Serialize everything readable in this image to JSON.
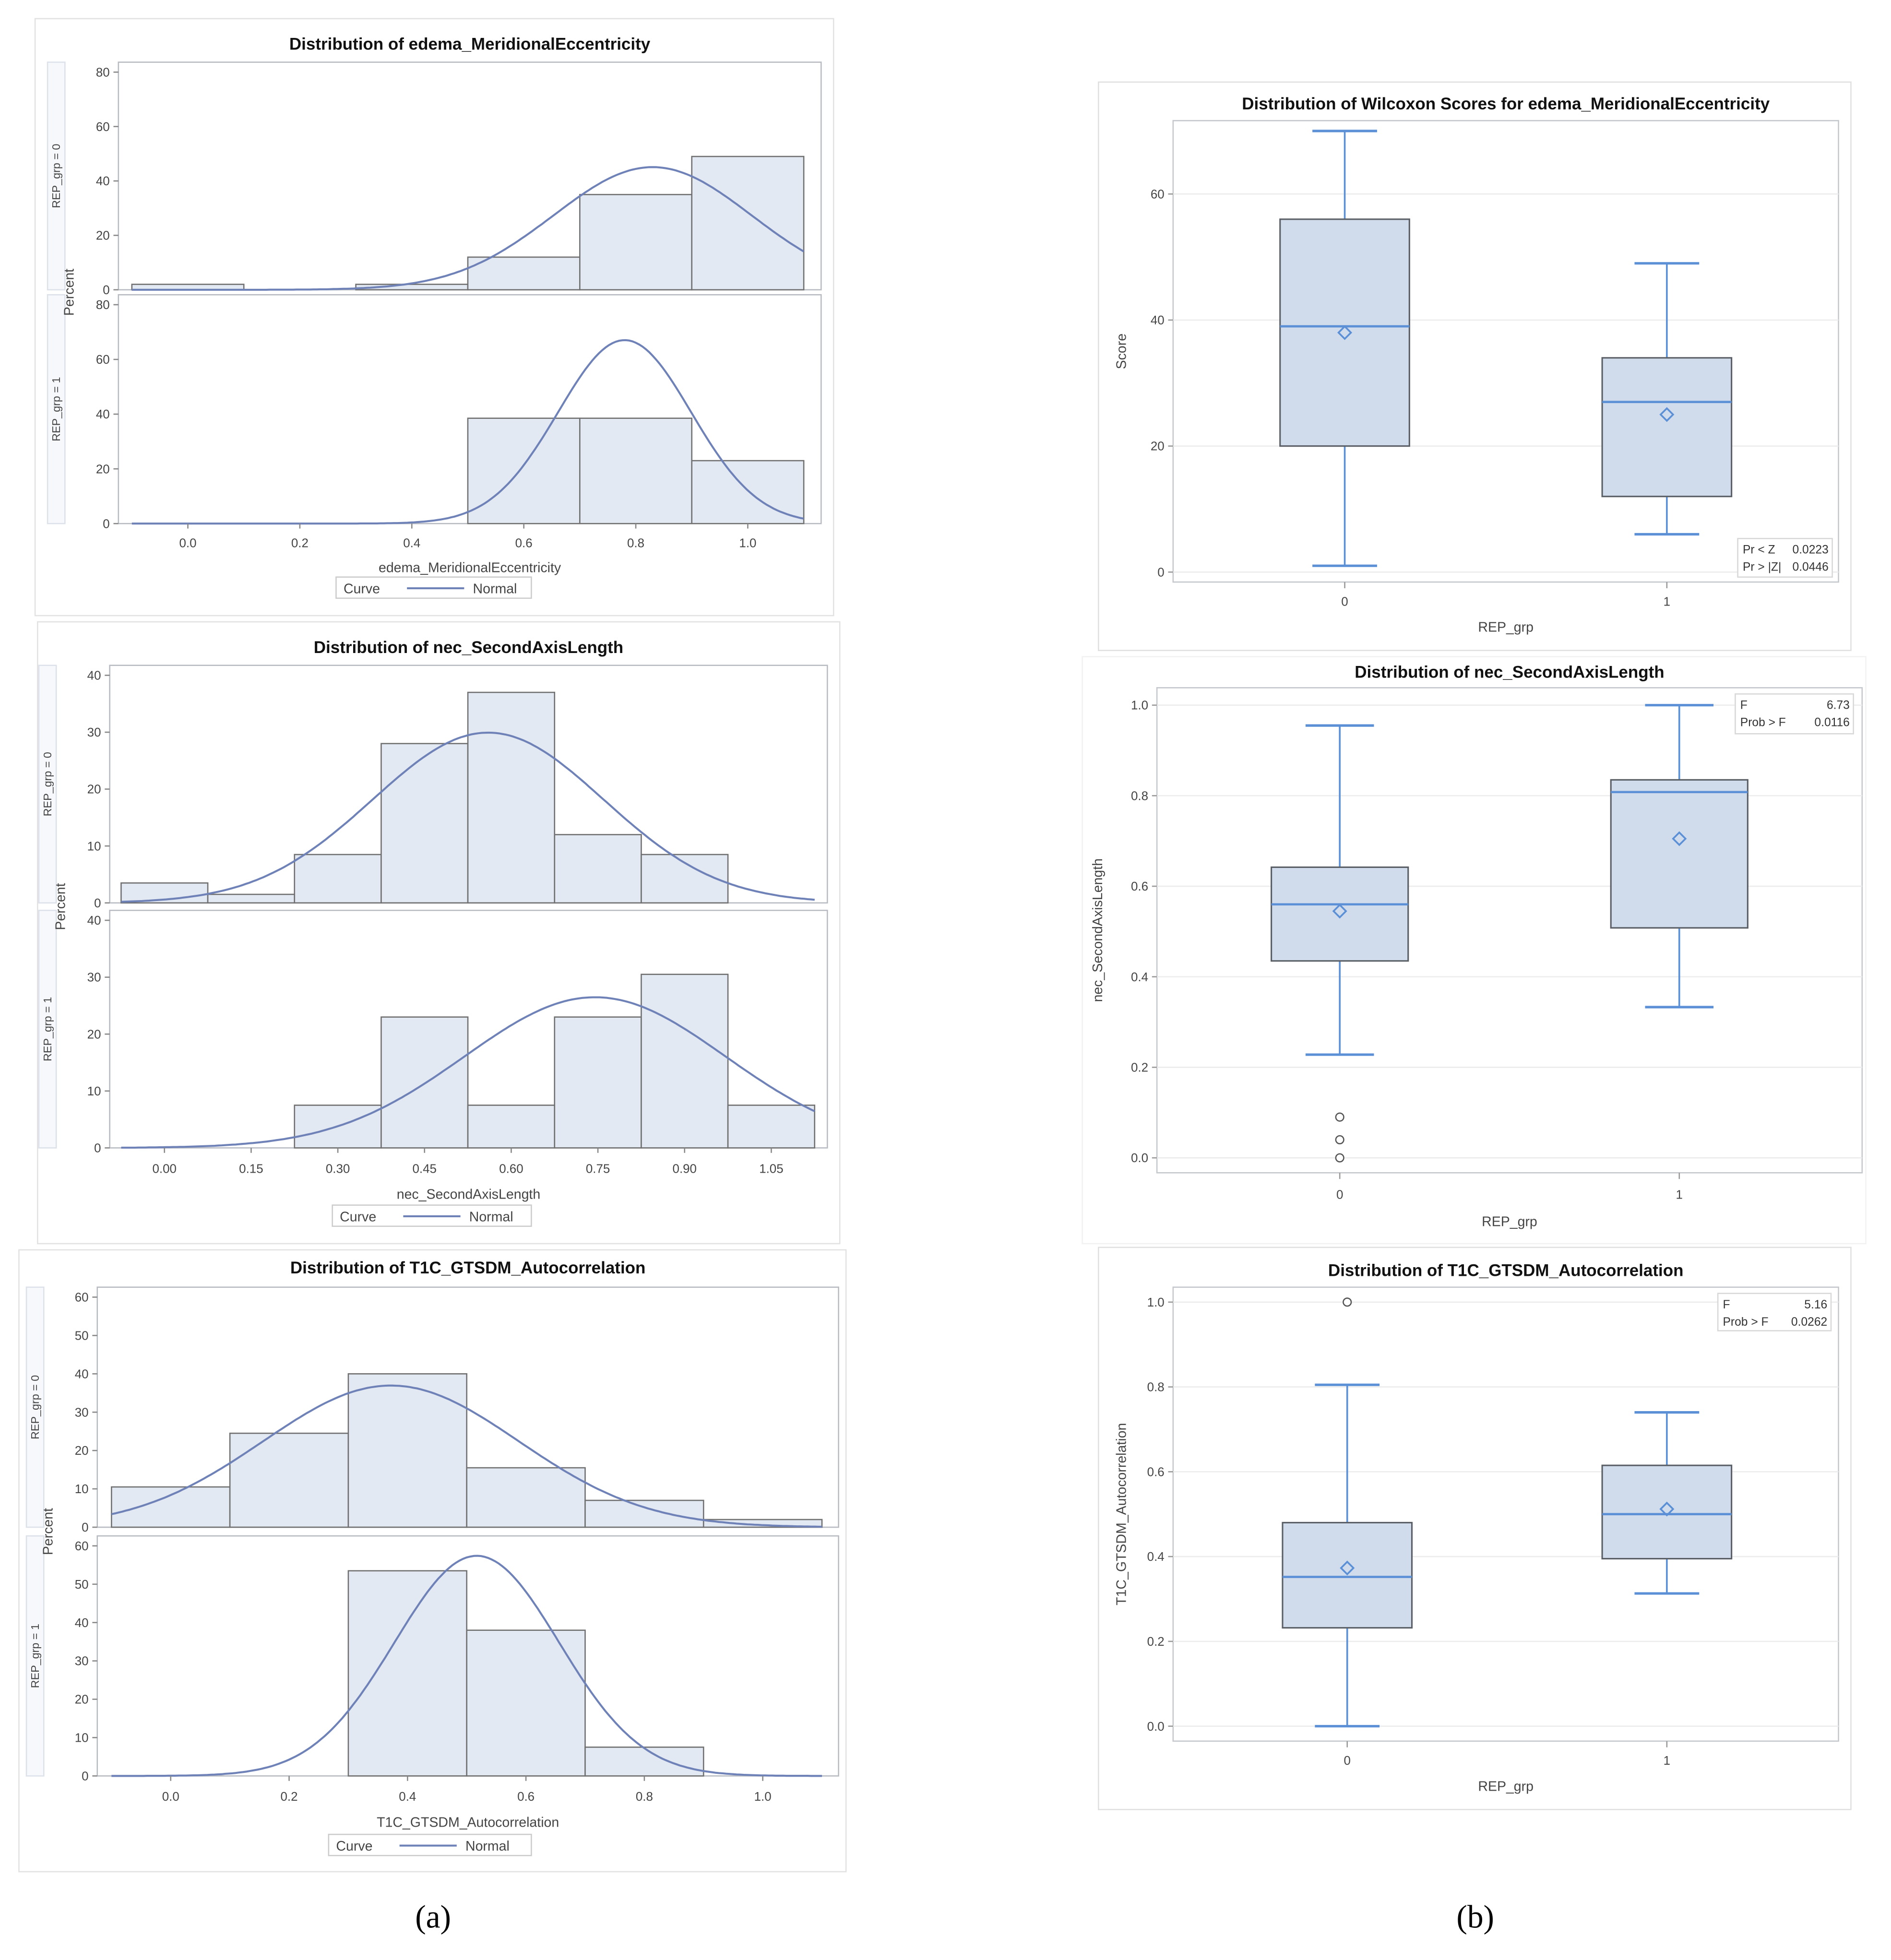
{
  "panel_labels": {
    "a": "(a)",
    "b": "(b)"
  },
  "chart_data": [
    {
      "type": "histogram",
      "title": "Distribution of edema_MeridionalEccentricity",
      "xlabel": "edema_MeridionalEccentricity",
      "ylabel": "Percent",
      "x_ticks": [
        "0.0",
        "0.2",
        "0.4",
        "0.6",
        "0.8",
        "1.0"
      ],
      "x_tick_values": [
        0,
        0.2,
        0.4,
        0.6,
        0.8,
        1.0
      ],
      "y_ticks": [
        "0",
        "20",
        "40",
        "60",
        "80"
      ],
      "ylim": [
        0,
        80
      ],
      "bin_width": 0.2,
      "bin_centers": [
        0,
        0.2,
        0.4,
        0.6,
        0.8,
        1.0
      ],
      "curve_range": [
        -0.1,
        1.1
      ],
      "legend": {
        "title": "Curve",
        "entry": "Normal"
      },
      "panels": [
        {
          "label": "REP_grp = 0",
          "values": [
            2,
            0,
            2,
            12,
            35,
            49
          ],
          "normal": {
            "mean": 0.83,
            "sd": 0.177
          }
        },
        {
          "label": "REP_grp = 1",
          "values": [
            0,
            0,
            0,
            38.5,
            38.5,
            23
          ],
          "normal": {
            "mean": 0.78,
            "sd": 0.119
          }
        }
      ]
    },
    {
      "type": "histogram",
      "title": "Distribution of nec_SecondAxisLength",
      "xlabel": "nec_SecondAxisLength",
      "ylabel": "Percent",
      "x_ticks": [
        "0.00",
        "0.15",
        "0.30",
        "0.45",
        "0.60",
        "0.75",
        "0.90",
        "1.05"
      ],
      "x_tick_values": [
        0,
        0.15,
        0.3,
        0.45,
        0.6,
        0.75,
        0.9,
        1.05
      ],
      "y_ticks": [
        "0",
        "10",
        "20",
        "30",
        "40"
      ],
      "ylim": [
        0,
        40
      ],
      "bin_width": 0.15,
      "bin_centers": [
        0,
        0.15,
        0.3,
        0.45,
        0.6,
        0.75,
        0.9,
        1.05
      ],
      "curve_range": [
        -0.075,
        1.125
      ],
      "legend": {
        "title": "Curve",
        "entry": "Normal"
      },
      "panels": [
        {
          "label": "REP_grp = 0",
          "values": [
            3.5,
            1.5,
            8.5,
            28,
            37,
            12,
            8.5,
            0
          ],
          "normal": {
            "mean": 0.56,
            "sd": 0.2
          }
        },
        {
          "label": "REP_grp = 1",
          "values": [
            0,
            0,
            7.5,
            23,
            7.5,
            23,
            30.5,
            7.5
          ],
          "normal": {
            "mean": 0.745,
            "sd": 0.226
          }
        }
      ]
    },
    {
      "type": "histogram",
      "title": "Distribution of T1C_GTSDM_Autocorrelation",
      "xlabel": "T1C_GTSDM_Autocorrelation",
      "ylabel": "Percent",
      "x_ticks": [
        "0.0",
        "0.2",
        "0.4",
        "0.6",
        "0.8",
        "1.0"
      ],
      "x_tick_values": [
        0,
        0.2,
        0.4,
        0.6,
        0.8,
        1.0
      ],
      "y_ticks": [
        "0",
        "10",
        "20",
        "30",
        "40",
        "50",
        "60"
      ],
      "ylim": [
        0,
        60
      ],
      "bin_width": 0.2,
      "bin_centers": [
        0,
        0.2,
        0.4,
        0.6,
        0.8,
        1.0
      ],
      "curve_range": [
        -0.1,
        1.1
      ],
      "legend": {
        "title": "Curve",
        "entry": "Normal"
      },
      "panels": [
        {
          "label": "REP_grp = 0",
          "values": [
            10.5,
            24.5,
            40,
            15.5,
            7,
            2
          ],
          "normal": {
            "mean": 0.372,
            "sd": 0.216
          }
        },
        {
          "label": "REP_grp = 1",
          "values": [
            0,
            0,
            53.5,
            38,
            7.5,
            0
          ],
          "normal": {
            "mean": 0.517,
            "sd": 0.139
          }
        }
      ]
    },
    {
      "type": "box",
      "title": "Distribution of Wilcoxon Scores for edema_MeridionalEccentricity",
      "xlabel": "REP_grp",
      "ylabel": "Score",
      "categories": [
        "0",
        "1"
      ],
      "y_ticks": [
        "0",
        "20",
        "40",
        "60"
      ],
      "y_tick_values": [
        0,
        20,
        40,
        60
      ],
      "groups": [
        {
          "min": 1,
          "q1": 20,
          "median": 39,
          "q3": 56,
          "max": 70,
          "mean": 38,
          "outliers": []
        },
        {
          "min": 6,
          "q1": 12,
          "median": 27,
          "q3": 34,
          "max": 49,
          "mean": 25,
          "outliers": []
        }
      ],
      "stats": [
        {
          "label": "Pr < Z",
          "value": "0.0223"
        },
        {
          "label": "Pr > |Z|",
          "value": "0.0446"
        }
      ],
      "stats_position": "bottom-right"
    },
    {
      "type": "box",
      "title": "Distribution of nec_SecondAxisLength",
      "xlabel": "REP_grp",
      "ylabel": "nec_SecondAxisLength",
      "categories": [
        "0",
        "1"
      ],
      "y_ticks": [
        "0.0",
        "0.2",
        "0.4",
        "0.6",
        "0.8",
        "1.0"
      ],
      "y_tick_values": [
        0,
        0.2,
        0.4,
        0.6,
        0.8,
        1.0
      ],
      "groups": [
        {
          "min": 0.228,
          "q1": 0.435,
          "median": 0.56,
          "q3": 0.642,
          "max": 0.955,
          "mean": 0.545,
          "outliers": [
            0.09,
            0.04,
            0.0
          ]
        },
        {
          "min": 0.333,
          "q1": 0.508,
          "median": 0.808,
          "q3": 0.835,
          "max": 1.0,
          "mean": 0.705,
          "outliers": []
        }
      ],
      "stats": [
        {
          "label": "F",
          "value": "6.73"
        },
        {
          "label": "Prob > F",
          "value": "0.0116"
        }
      ],
      "stats_position": "top-right"
    },
    {
      "type": "box",
      "title": "Distribution of T1C_GTSDM_Autocorrelation",
      "xlabel": "REP_grp",
      "ylabel": "T1C_GTSDM_Autocorrelation",
      "categories": [
        "0",
        "1"
      ],
      "y_ticks": [
        "0.0",
        "0.2",
        "0.4",
        "0.6",
        "0.8",
        "1.0"
      ],
      "y_tick_values": [
        0,
        0.2,
        0.4,
        0.6,
        0.8,
        1.0
      ],
      "groups": [
        {
          "min": 0.0,
          "q1": 0.232,
          "median": 0.352,
          "q3": 0.48,
          "max": 0.805,
          "mean": 0.373,
          "outliers": [
            1.0
          ]
        },
        {
          "min": 0.313,
          "q1": 0.395,
          "median": 0.5,
          "q3": 0.615,
          "max": 0.74,
          "mean": 0.512,
          "outliers": []
        }
      ],
      "stats": [
        {
          "label": "F",
          "value": "5.16"
        },
        {
          "label": "Prob > F",
          "value": "0.0262"
        }
      ],
      "stats_position": "top-right"
    }
  ],
  "colors": {
    "bar_fill": "#e3e9f3",
    "bar_stroke": "#707070",
    "curve": "#6f82b8",
    "box_fill": "#d0dcec",
    "whisker": "#5b8fd6"
  }
}
